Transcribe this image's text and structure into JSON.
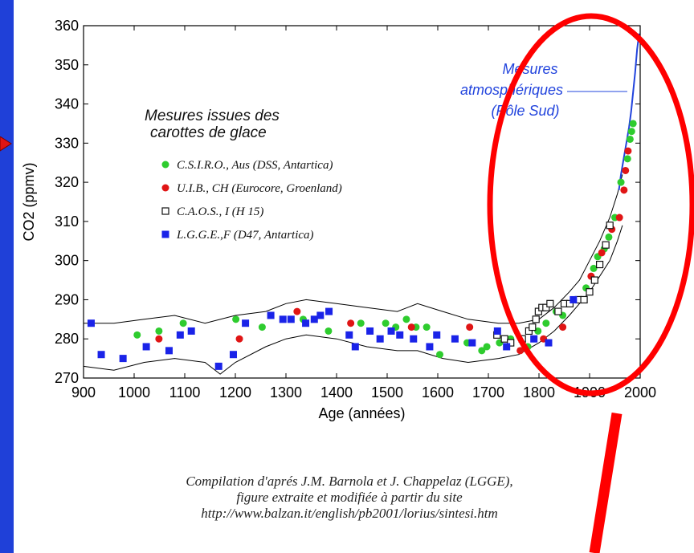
{
  "chart_data": {
    "type": "scatter",
    "xlabel": "Age (années)",
    "ylabel": "CO2 (ppmv)",
    "xlim": [
      900,
      2000
    ],
    "ylim": [
      270,
      360
    ],
    "xticks": [
      900,
      1000,
      1100,
      1200,
      1300,
      1400,
      1500,
      1600,
      1700,
      1800,
      1900,
      2000
    ],
    "yticks": [
      270,
      280,
      290,
      300,
      310,
      320,
      330,
      340,
      350,
      360
    ],
    "legend_title": [
      "Mesures issues des",
      "carottes de glace"
    ],
    "series": [
      {
        "name": "C.S.I.R.O., Aus (DSS, Antartica)",
        "color": "#2ecc2e",
        "marker": "circle",
        "points": [
          [
            1006,
            281
          ],
          [
            1049,
            282
          ],
          [
            1097,
            284
          ],
          [
            1201,
            285
          ],
          [
            1253,
            283
          ],
          [
            1334,
            285
          ],
          [
            1384,
            282
          ],
          [
            1448,
            284
          ],
          [
            1497,
            284
          ],
          [
            1517,
            283
          ],
          [
            1538,
            285
          ],
          [
            1557,
            283
          ],
          [
            1578,
            283
          ],
          [
            1604,
            276
          ],
          [
            1658,
            279
          ],
          [
            1687,
            277
          ],
          [
            1697,
            278
          ],
          [
            1722,
            279
          ],
          [
            1744,
            280
          ],
          [
            1778,
            278
          ],
          [
            1798,
            282
          ],
          [
            1814,
            284
          ],
          [
            1834,
            287
          ],
          [
            1847,
            286
          ],
          [
            1893,
            293
          ],
          [
            1908,
            298
          ],
          [
            1916,
            301
          ],
          [
            1929,
            303
          ],
          [
            1938,
            306
          ],
          [
            1950,
            311
          ],
          [
            1962,
            320
          ],
          [
            1975,
            326
          ],
          [
            1980,
            331
          ],
          [
            1983,
            333
          ],
          [
            1986,
            335
          ]
        ]
      },
      {
        "name": "U.I.B., CH (Eurocore, Groenland)",
        "color": "#e01515",
        "marker": "circle",
        "points": [
          [
            1049,
            280
          ],
          [
            1208,
            280
          ],
          [
            1322,
            287
          ],
          [
            1428,
            284
          ],
          [
            1548,
            283
          ],
          [
            1663,
            283
          ],
          [
            1763,
            277
          ],
          [
            1809,
            280
          ],
          [
            1847,
            283
          ],
          [
            1903,
            296
          ],
          [
            1924,
            302
          ],
          [
            1944,
            308
          ],
          [
            1959,
            311
          ],
          [
            1968,
            318
          ],
          [
            1971,
            323
          ],
          [
            1976,
            328
          ]
        ]
      },
      {
        "name": "C.A.O.S., I (H 15)",
        "color": "#111111",
        "marker": "square-open",
        "points": [
          [
            1717,
            281
          ],
          [
            1732,
            280
          ],
          [
            1744,
            279
          ],
          [
            1767,
            280
          ],
          [
            1780,
            282
          ],
          [
            1787,
            283
          ],
          [
            1794,
            285
          ],
          [
            1799,
            287
          ],
          [
            1806,
            288
          ],
          [
            1814,
            288
          ],
          [
            1822,
            289
          ],
          [
            1838,
            287
          ],
          [
            1850,
            289
          ],
          [
            1861,
            289
          ],
          [
            1878,
            290
          ],
          [
            1889,
            290
          ],
          [
            1900,
            292
          ],
          [
            1910,
            295
          ],
          [
            1920,
            299
          ],
          [
            1932,
            304
          ],
          [
            1940,
            309
          ]
        ]
      },
      {
        "name": "L.G.G.E.,F (D47, Antartica)",
        "color": "#1a23e8",
        "marker": "square",
        "points": [
          [
            915,
            284
          ],
          [
            935,
            276
          ],
          [
            978,
            275
          ],
          [
            1024,
            278
          ],
          [
            1069,
            277
          ],
          [
            1091,
            281
          ],
          [
            1113,
            282
          ],
          [
            1167,
            273
          ],
          [
            1196,
            276
          ],
          [
            1220,
            284
          ],
          [
            1270,
            286
          ],
          [
            1294,
            285
          ],
          [
            1310,
            285
          ],
          [
            1339,
            284
          ],
          [
            1356,
            285
          ],
          [
            1368,
            286
          ],
          [
            1385,
            287
          ],
          [
            1425,
            281
          ],
          [
            1437,
            278
          ],
          [
            1466,
            282
          ],
          [
            1486,
            280
          ],
          [
            1508,
            282
          ],
          [
            1525,
            281
          ],
          [
            1552,
            280
          ],
          [
            1584,
            278
          ],
          [
            1598,
            281
          ],
          [
            1634,
            280
          ],
          [
            1668,
            279
          ],
          [
            1718,
            282
          ],
          [
            1736,
            278
          ],
          [
            1790,
            280
          ],
          [
            1819,
            279
          ],
          [
            1868,
            290
          ]
        ]
      }
    ],
    "envelope_upper": [
      [
        900,
        284
      ],
      [
        960,
        284
      ],
      [
        1020,
        285
      ],
      [
        1080,
        286
      ],
      [
        1140,
        284
      ],
      [
        1200,
        286
      ],
      [
        1260,
        287
      ],
      [
        1300,
        289
      ],
      [
        1340,
        290
      ],
      [
        1400,
        289
      ],
      [
        1460,
        288
      ],
      [
        1520,
        287
      ],
      [
        1560,
        289
      ],
      [
        1610,
        287
      ],
      [
        1660,
        285
      ],
      [
        1720,
        284
      ],
      [
        1760,
        284
      ],
      [
        1800,
        285
      ],
      [
        1830,
        288
      ],
      [
        1860,
        292
      ],
      [
        1880,
        295
      ],
      [
        1900,
        300
      ],
      [
        1920,
        305
      ],
      [
        1940,
        311
      ],
      [
        1955,
        317
      ],
      [
        1965,
        322
      ]
    ],
    "envelope_lower": [
      [
        900,
        273
      ],
      [
        960,
        272
      ],
      [
        1020,
        274
      ],
      [
        1080,
        275
      ],
      [
        1140,
        274
      ],
      [
        1170,
        271
      ],
      [
        1200,
        274
      ],
      [
        1260,
        278
      ],
      [
        1300,
        280
      ],
      [
        1340,
        281
      ],
      [
        1400,
        280
      ],
      [
        1460,
        278
      ],
      [
        1520,
        277
      ],
      [
        1560,
        277
      ],
      [
        1610,
        275
      ],
      [
        1660,
        274
      ],
      [
        1720,
        275
      ],
      [
        1760,
        276
      ],
      [
        1800,
        279
      ],
      [
        1830,
        282
      ],
      [
        1860,
        286
      ],
      [
        1880,
        289
      ],
      [
        1900,
        292
      ],
      [
        1920,
        296
      ],
      [
        1940,
        300
      ],
      [
        1955,
        305
      ],
      [
        1965,
        309
      ]
    ],
    "atmospheric_line": [
      [
        1958,
        318
      ],
      [
        1962,
        322
      ],
      [
        1966,
        325
      ],
      [
        1970,
        328
      ],
      [
        1974,
        331
      ],
      [
        1978,
        334
      ],
      [
        1982,
        338
      ],
      [
        1986,
        343
      ],
      [
        1990,
        348
      ],
      [
        1994,
        354
      ],
      [
        1998,
        358
      ]
    ],
    "annotation": [
      "Mesures",
      "atmosphériques",
      "(Pôle Sud)"
    ],
    "colors": {
      "background": "#1f40d8",
      "panel": "#ffffff",
      "highlight": "#ff0000",
      "annotation": "#2244dd"
    }
  },
  "caption": [
    "Compilation d'aprés J.M. Barnola et J. Chappelaz (LGGE),",
    "figure extraite et modifiée à partir du site",
    "http://www.balzan.it/english/pb2001/lorius/sintesi.htm"
  ]
}
